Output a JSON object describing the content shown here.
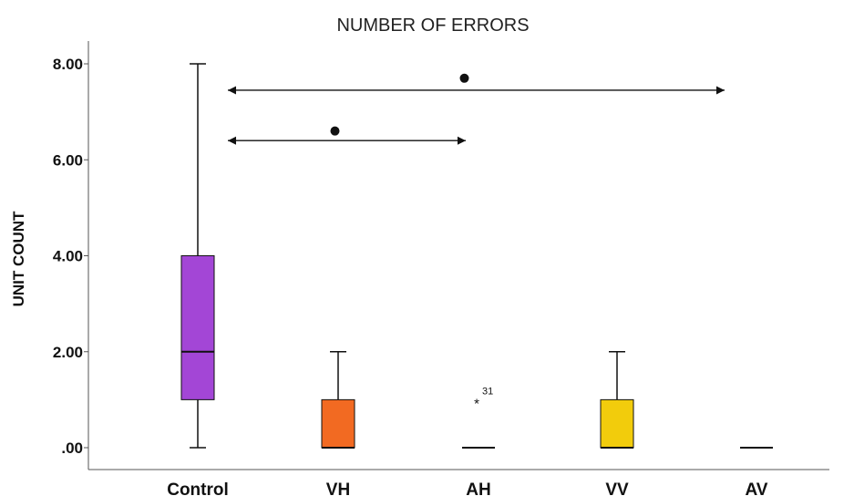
{
  "chart_data": {
    "type": "box",
    "title": "NUMBER OF ERRORS",
    "xlabel": "",
    "ylabel": "UNIT COUNT",
    "ylim": [
      0,
      8.4
    ],
    "yticks": [
      0,
      2,
      4,
      6,
      8
    ],
    "ytick_labels": [
      ".00",
      "2.00",
      "4.00",
      "6.00",
      "8.00"
    ],
    "grid": false,
    "categories": [
      "Control",
      "VH",
      "AH",
      "VV",
      "AV"
    ],
    "boxes": [
      {
        "category": "Control",
        "min": 0,
        "q1": 1,
        "median": 2,
        "q3": 4,
        "max": 8,
        "color": "#a346d6"
      },
      {
        "category": "VH",
        "min": 0,
        "q1": 0,
        "median": 0,
        "q3": 1,
        "max": 2,
        "color": "#f26a22"
      },
      {
        "category": "AH",
        "min": 0,
        "q1": 0,
        "median": 0,
        "q3": 0,
        "max": 0,
        "color": "#222222"
      },
      {
        "category": "VV",
        "min": 0,
        "q1": 0,
        "median": 0,
        "q3": 1,
        "max": 2,
        "color": "#f2cc0c"
      },
      {
        "category": "AV",
        "min": 0,
        "q1": 0,
        "median": 0,
        "q3": 0,
        "max": 0,
        "color": "#222222"
      }
    ],
    "outliers": [
      {
        "category": "AH",
        "value": 1,
        "marker": "*",
        "label": "31"
      }
    ],
    "comparisons": [
      {
        "from": "Control",
        "to": "AH",
        "y": 6.4,
        "marker_y": 6.6
      },
      {
        "from": "Control",
        "to": "AV",
        "y": 7.45,
        "marker_y": 7.7
      }
    ]
  }
}
